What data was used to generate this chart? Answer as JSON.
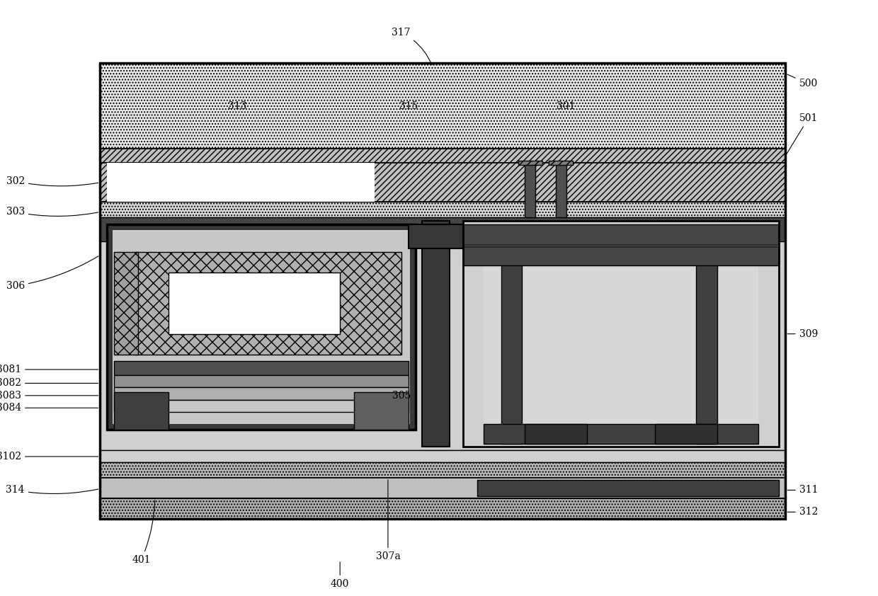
{
  "fig_width": 12.4,
  "fig_height": 8.42,
  "bg_color": "#ffffff",
  "colors": {
    "dotted_light": "#e0e0e0",
    "hatched_diag": "#c8c8c8",
    "mid_gray": "#b0b0b0",
    "light_gray": "#d0d0d0",
    "dark_gray": "#505050",
    "very_dark": "#303030",
    "black": "#000000",
    "white": "#ffffff",
    "cross_hatch": "#b8b8b8",
    "light_dotted": "#d8d8d8",
    "medium_gray": "#909090"
  }
}
